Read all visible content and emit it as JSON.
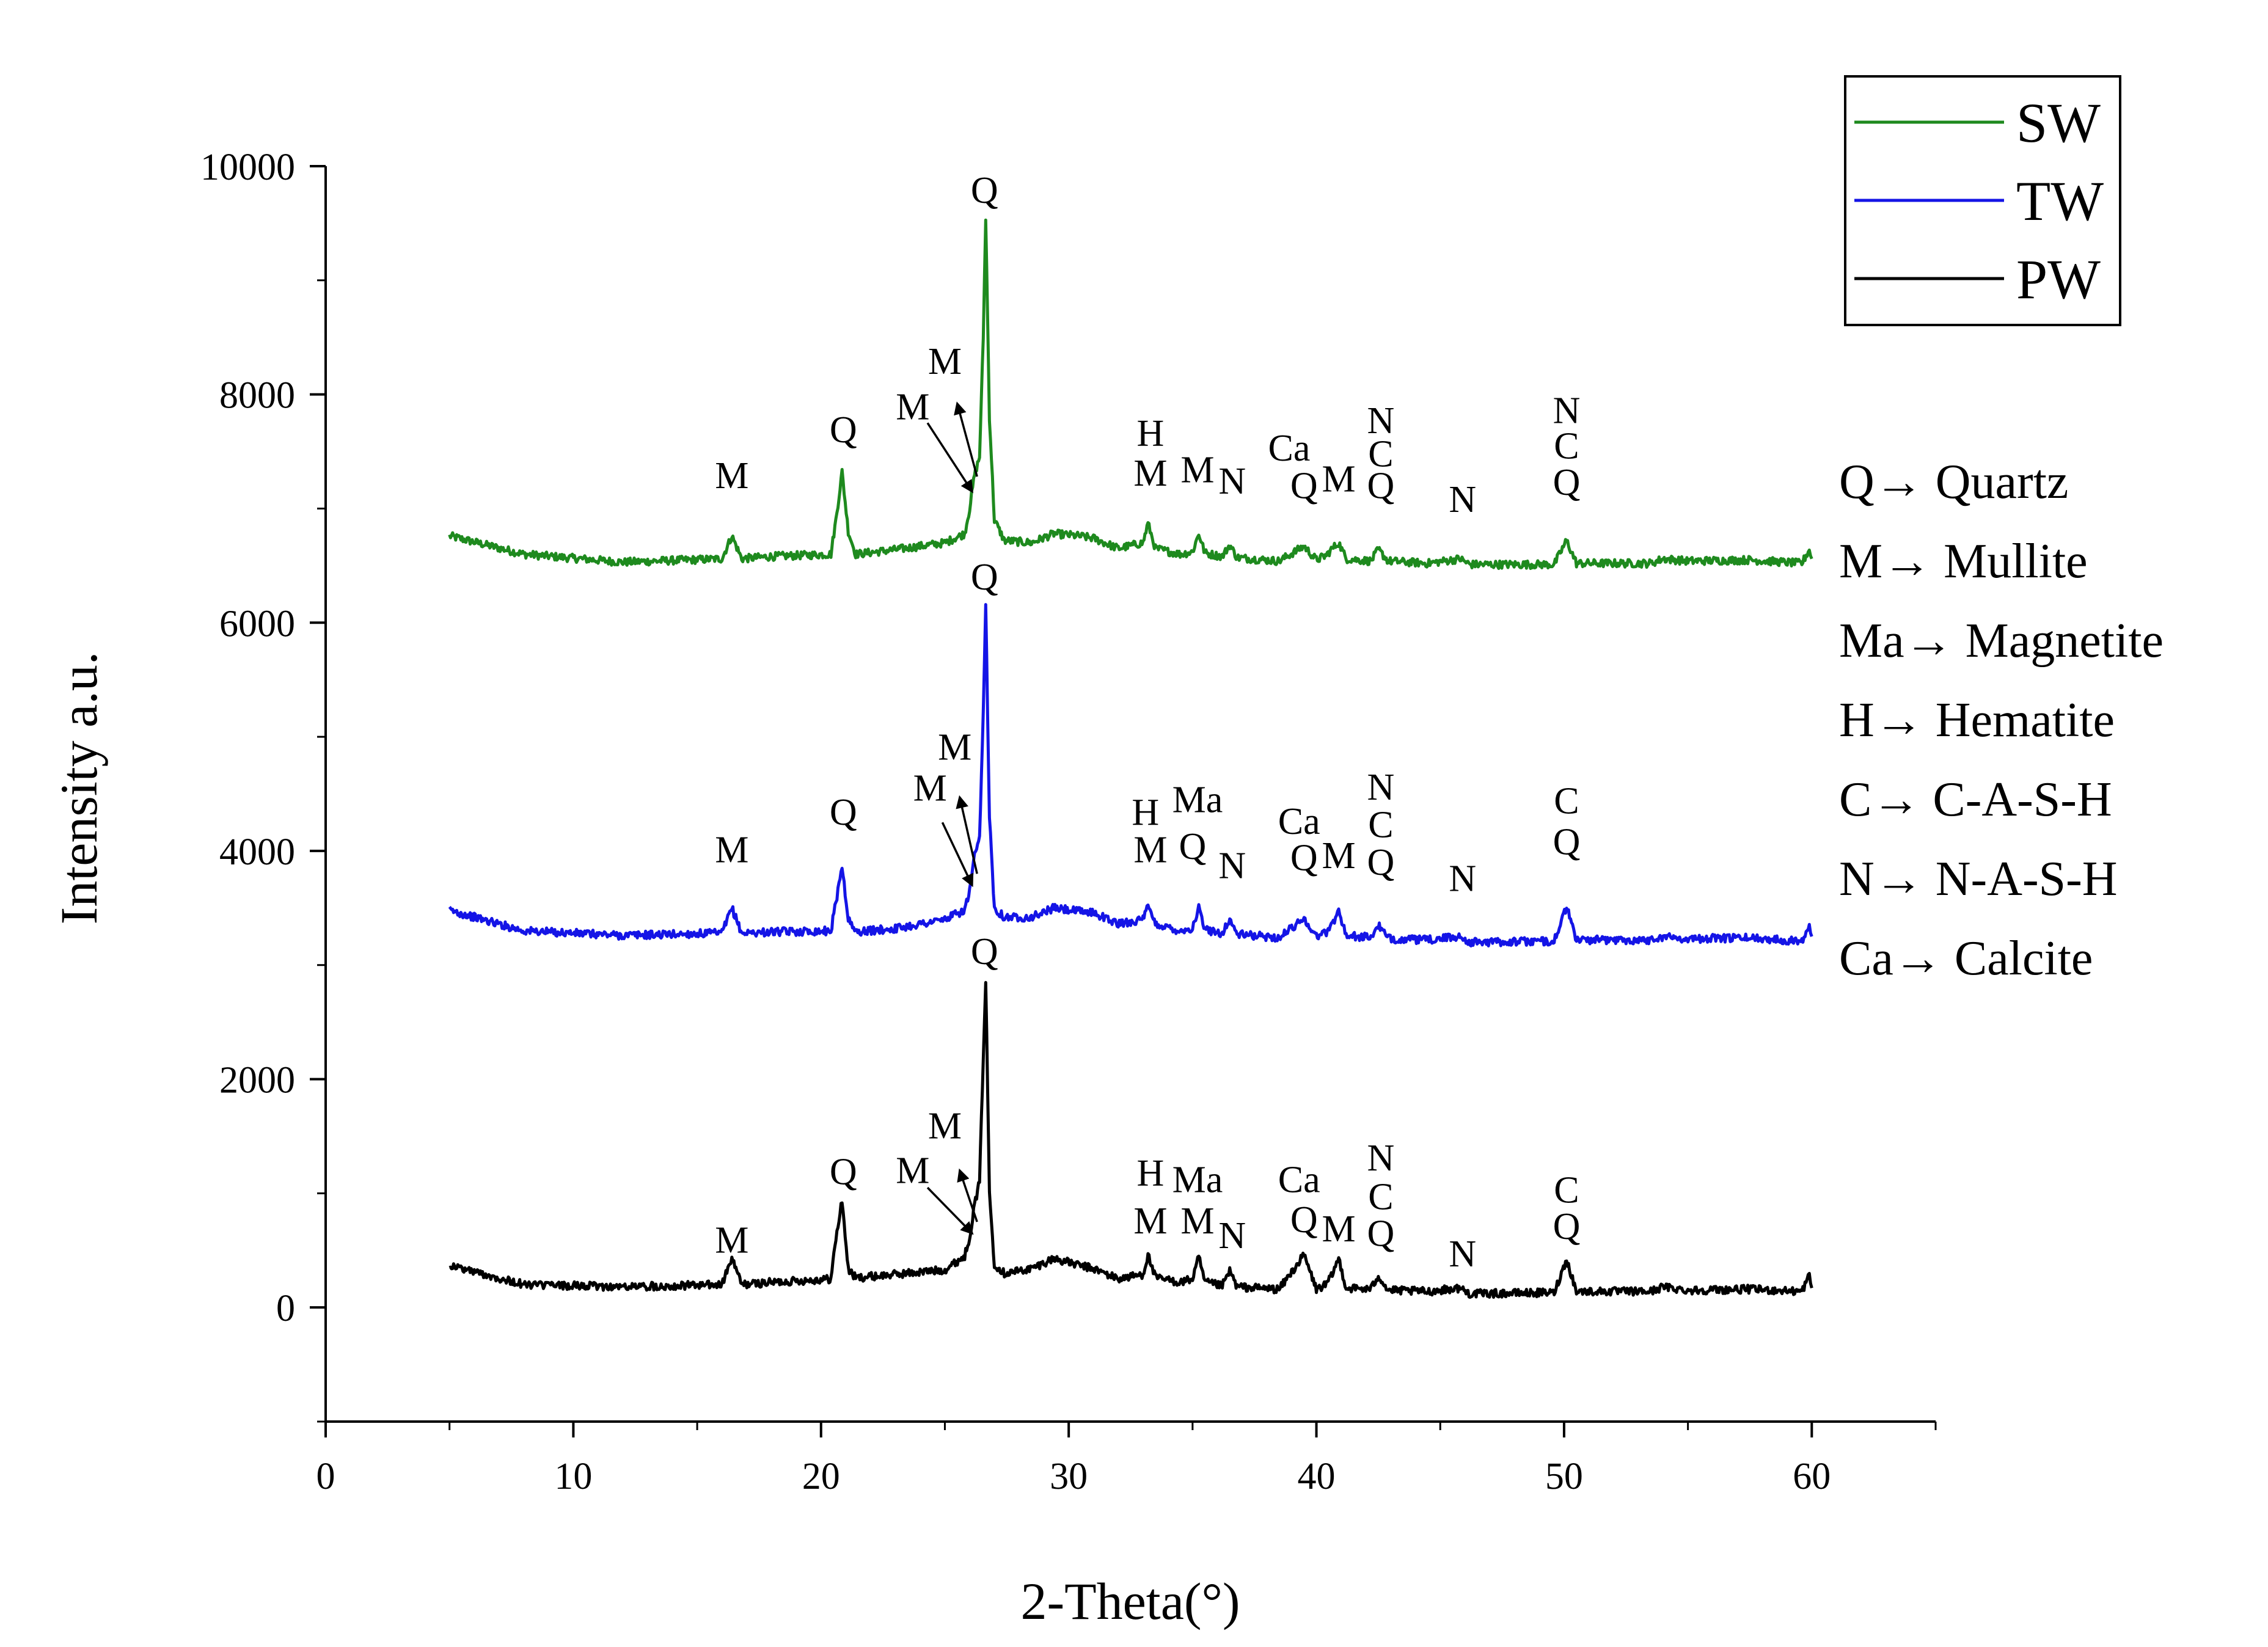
{
  "chart_data": {
    "type": "line",
    "title": "",
    "xlabel": "2-Theta(°)",
    "ylabel": "Intensity a.u.",
    "xlim": [
      0,
      65
    ],
    "ylim": [
      -1000,
      10000
    ],
    "xticks": [
      0,
      10,
      20,
      30,
      40,
      50,
      60
    ],
    "yticks": [
      0,
      2000,
      4000,
      6000,
      8000,
      10000
    ],
    "grid": false,
    "legend_position": "top-right",
    "colors": {
      "SW": "#1e8a1e",
      "TW": "#1414e6",
      "PW": "#000000"
    },
    "series": [
      {
        "name": "SW",
        "color": "#1e8a1e",
        "x": [
          5,
          8,
          12,
          16,
          16.4,
          16.8,
          18,
          20.4,
          20.6,
          20.85,
          21.1,
          21.4,
          23,
          25,
          25.8,
          26.0,
          26.2,
          26.4,
          26.55,
          26.65,
          26.8,
          27.0,
          27.4,
          28.5,
          29.4,
          30.4,
          31.0,
          32.0,
          33.0,
          33.2,
          33.5,
          34.5,
          35.0,
          35.25,
          35.5,
          36.2,
          36.5,
          36.8,
          38.5,
          39.5,
          40.0,
          40.4,
          40.6,
          40.9,
          41.2,
          42.2,
          42.5,
          42.9,
          44.5,
          45.8,
          46.2,
          49.6,
          50.1,
          50.5,
          53.5,
          54.0,
          55.0,
          57.5,
          59.6,
          59.9,
          60
        ],
        "y": [
          6760,
          6600,
          6530,
          6560,
          6760,
          6560,
          6580,
          6600,
          6900,
          7320,
          6800,
          6600,
          6640,
          6700,
          6780,
          7000,
          7300,
          7450,
          8500,
          9550,
          7800,
          6900,
          6720,
          6700,
          6780,
          6760,
          6740,
          6650,
          6700,
          6870,
          6650,
          6600,
          6620,
          6780,
          6610,
          6580,
          6680,
          6570,
          6540,
          6670,
          6550,
          6590,
          6640,
          6700,
          6560,
          6540,
          6640,
          6540,
          6520,
          6560,
          6510,
          6510,
          6720,
          6520,
          6520,
          6560,
          6540,
          6550,
          6520,
          6640,
          6560
        ]
      },
      {
        "name": "TW",
        "color": "#1414e6",
        "x": [
          5,
          8,
          12,
          16,
          16.4,
          16.8,
          18,
          20.4,
          20.6,
          20.85,
          21.1,
          21.4,
          23,
          25,
          25.8,
          26.0,
          26.2,
          26.4,
          26.55,
          26.65,
          26.8,
          27.0,
          27.4,
          28.5,
          29.4,
          30.4,
          31.0,
          32.0,
          33.0,
          33.2,
          33.5,
          34.5,
          35.0,
          35.25,
          35.5,
          36.2,
          36.5,
          36.8,
          38.5,
          39.5,
          40.0,
          40.4,
          40.6,
          40.9,
          41.2,
          42.2,
          42.5,
          42.9,
          44.5,
          45.8,
          46.2,
          49.6,
          50.1,
          50.5,
          53.5,
          54.0,
          55.0,
          57.5,
          59.6,
          59.9,
          60
        ],
        "y": [
          3480,
          3300,
          3260,
          3280,
          3500,
          3280,
          3290,
          3300,
          3550,
          3870,
          3400,
          3290,
          3320,
          3400,
          3480,
          3650,
          3950,
          4100,
          5200,
          6150,
          4300,
          3500,
          3420,
          3420,
          3500,
          3470,
          3460,
          3360,
          3400,
          3510,
          3360,
          3300,
          3320,
          3500,
          3310,
          3280,
          3400,
          3270,
          3240,
          3410,
          3250,
          3290,
          3340,
          3480,
          3260,
          3240,
          3350,
          3230,
          3220,
          3250,
          3200,
          3210,
          3510,
          3220,
          3220,
          3250,
          3230,
          3240,
          3210,
          3370,
          3250
        ]
      },
      {
        "name": "PW",
        "color": "#000000",
        "x": [
          5,
          8,
          12,
          16,
          16.4,
          16.8,
          18,
          20.4,
          20.6,
          20.85,
          21.1,
          21.4,
          23,
          25,
          25.8,
          26.0,
          26.2,
          26.4,
          26.55,
          26.65,
          26.8,
          27.0,
          27.4,
          28.5,
          29.4,
          30.4,
          31.0,
          32.0,
          33.0,
          33.2,
          33.5,
          34.5,
          35.0,
          35.25,
          35.5,
          36.2,
          36.5,
          36.8,
          38.5,
          39.5,
          40.0,
          40.4,
          40.6,
          40.9,
          41.2,
          42.2,
          42.5,
          42.9,
          44.5,
          45.8,
          46.2,
          49.6,
          50.1,
          50.5,
          53.5,
          54.0,
          55.0,
          57.5,
          59.6,
          59.9,
          60
        ],
        "y": [
          370,
          200,
          180,
          200,
          430,
          200,
          220,
          250,
          600,
          940,
          330,
          260,
          290,
          330,
          450,
          620,
          900,
          1100,
          2200,
          2860,
          1000,
          380,
          300,
          340,
          430,
          370,
          340,
          250,
          290,
          460,
          260,
          220,
          250,
          440,
          220,
          190,
          320,
          180,
          160,
          460,
          160,
          200,
          270,
          430,
          170,
          160,
          280,
          150,
          140,
          170,
          120,
          130,
          420,
          140,
          140,
          180,
          150,
          160,
          140,
          280,
          170
        ]
      }
    ],
    "annotations": [
      {
        "series": "SW",
        "labels": [
          {
            "text": "M",
            "x": 16.4,
            "y": 7180
          },
          {
            "text": "Q",
            "x": 20.9,
            "y": 7580
          },
          {
            "text": "M",
            "x": 23.7,
            "y": 7780
          },
          {
            "text": "M",
            "x": 25.0,
            "y": 8180
          },
          {
            "text": "Q",
            "x": 26.6,
            "y": 9680
          },
          {
            "text": "H",
            "x": 33.3,
            "y": 7550
          },
          {
            "text": "M",
            "x": 33.3,
            "y": 7200
          },
          {
            "text": "M",
            "x": 35.2,
            "y": 7230
          },
          {
            "text": "N",
            "x": 36.6,
            "y": 7130
          },
          {
            "text": "Ca",
            "x": 38.9,
            "y": 7420
          },
          {
            "text": "Q",
            "x": 39.5,
            "y": 7090
          },
          {
            "text": "M",
            "x": 40.9,
            "y": 7150
          },
          {
            "text": "N",
            "x": 42.6,
            "y": 7660
          },
          {
            "text": "C",
            "x": 42.6,
            "y": 7370
          },
          {
            "text": "Q",
            "x": 42.6,
            "y": 7090
          },
          {
            "text": "N",
            "x": 45.9,
            "y": 6970
          },
          {
            "text": "N",
            "x": 50.1,
            "y": 7750
          },
          {
            "text": "C",
            "x": 50.1,
            "y": 7440
          },
          {
            "text": "Q",
            "x": 50.1,
            "y": 7120
          }
        ]
      },
      {
        "series": "TW",
        "labels": [
          {
            "text": "M",
            "x": 16.4,
            "y": 3900
          },
          {
            "text": "Q",
            "x": 20.9,
            "y": 4230
          },
          {
            "text": "M",
            "x": 24.4,
            "y": 4440
          },
          {
            "text": "M",
            "x": 25.4,
            "y": 4800
          },
          {
            "text": "Q",
            "x": 26.6,
            "y": 6290
          },
          {
            "text": "H",
            "x": 33.1,
            "y": 4230
          },
          {
            "text": "Ma",
            "x": 35.2,
            "y": 4340
          },
          {
            "text": "M",
            "x": 33.3,
            "y": 3900
          },
          {
            "text": "Q",
            "x": 35.0,
            "y": 3930
          },
          {
            "text": "N",
            "x": 36.6,
            "y": 3760
          },
          {
            "text": "Ca",
            "x": 39.3,
            "y": 4150
          },
          {
            "text": "Q",
            "x": 39.5,
            "y": 3830
          },
          {
            "text": "M",
            "x": 40.9,
            "y": 3850
          },
          {
            "text": "N",
            "x": 42.6,
            "y": 4450
          },
          {
            "text": "C",
            "x": 42.6,
            "y": 4120
          },
          {
            "text": "Q",
            "x": 42.6,
            "y": 3790
          },
          {
            "text": "N",
            "x": 45.9,
            "y": 3650
          },
          {
            "text": "C",
            "x": 50.1,
            "y": 4330
          },
          {
            "text": "Q",
            "x": 50.1,
            "y": 3970
          }
        ]
      },
      {
        "series": "PW",
        "labels": [
          {
            "text": "M",
            "x": 16.4,
            "y": 480
          },
          {
            "text": "Q",
            "x": 20.9,
            "y": 1080
          },
          {
            "text": "M",
            "x": 23.7,
            "y": 1090
          },
          {
            "text": "M",
            "x": 25.0,
            "y": 1480
          },
          {
            "text": "Q",
            "x": 26.6,
            "y": 3010
          },
          {
            "text": "H",
            "x": 33.3,
            "y": 1070
          },
          {
            "text": "Ma",
            "x": 35.2,
            "y": 1010
          },
          {
            "text": "M",
            "x": 33.3,
            "y": 650
          },
          {
            "text": "M",
            "x": 35.2,
            "y": 650
          },
          {
            "text": "N",
            "x": 36.6,
            "y": 520
          },
          {
            "text": "Ca",
            "x": 39.3,
            "y": 1010
          },
          {
            "text": "Q",
            "x": 39.5,
            "y": 660
          },
          {
            "text": "M",
            "x": 40.9,
            "y": 580
          },
          {
            "text": "N",
            "x": 42.6,
            "y": 1200
          },
          {
            "text": "C",
            "x": 42.6,
            "y": 860
          },
          {
            "text": "Q",
            "x": 42.6,
            "y": 540
          },
          {
            "text": "N",
            "x": 45.9,
            "y": 360
          },
          {
            "text": "C",
            "x": 50.1,
            "y": 920
          },
          {
            "text": "Q",
            "x": 50.1,
            "y": 600
          }
        ]
      }
    ],
    "arrows": [
      {
        "series": "SW",
        "label": "M",
        "from": [
          24.3,
          7750
        ],
        "to": [
          26.1,
          7150
        ]
      },
      {
        "series": "SW",
        "label": "M",
        "from": [
          26.3,
          7280
        ],
        "to": [
          25.5,
          7920
        ]
      },
      {
        "series": "TW",
        "label": "M",
        "from": [
          24.9,
          4250
        ],
        "to": [
          26.1,
          3700
        ]
      },
      {
        "series": "TW",
        "label": "M",
        "from": [
          26.3,
          3800
        ],
        "to": [
          25.6,
          4470
        ]
      },
      {
        "series": "PW",
        "label": "M",
        "from": [
          24.3,
          1050
        ],
        "to": [
          26.1,
          650
        ]
      },
      {
        "series": "PW",
        "label": "M",
        "from": [
          26.3,
          750
        ],
        "to": [
          25.6,
          1200
        ]
      }
    ],
    "legend": [
      {
        "label": "SW",
        "color": "#1e8a1e"
      },
      {
        "label": "TW",
        "color": "#1414e6"
      },
      {
        "label": "PW",
        "color": "#000000"
      }
    ],
    "phase_key": [
      "Q→ Quartz",
      "M→ Mullite",
      "Ma→ Magnetite",
      "H→ Hematite",
      "C→ C-A-S-H",
      "N→ N-A-S-H",
      "Ca→ Calcite"
    ]
  }
}
